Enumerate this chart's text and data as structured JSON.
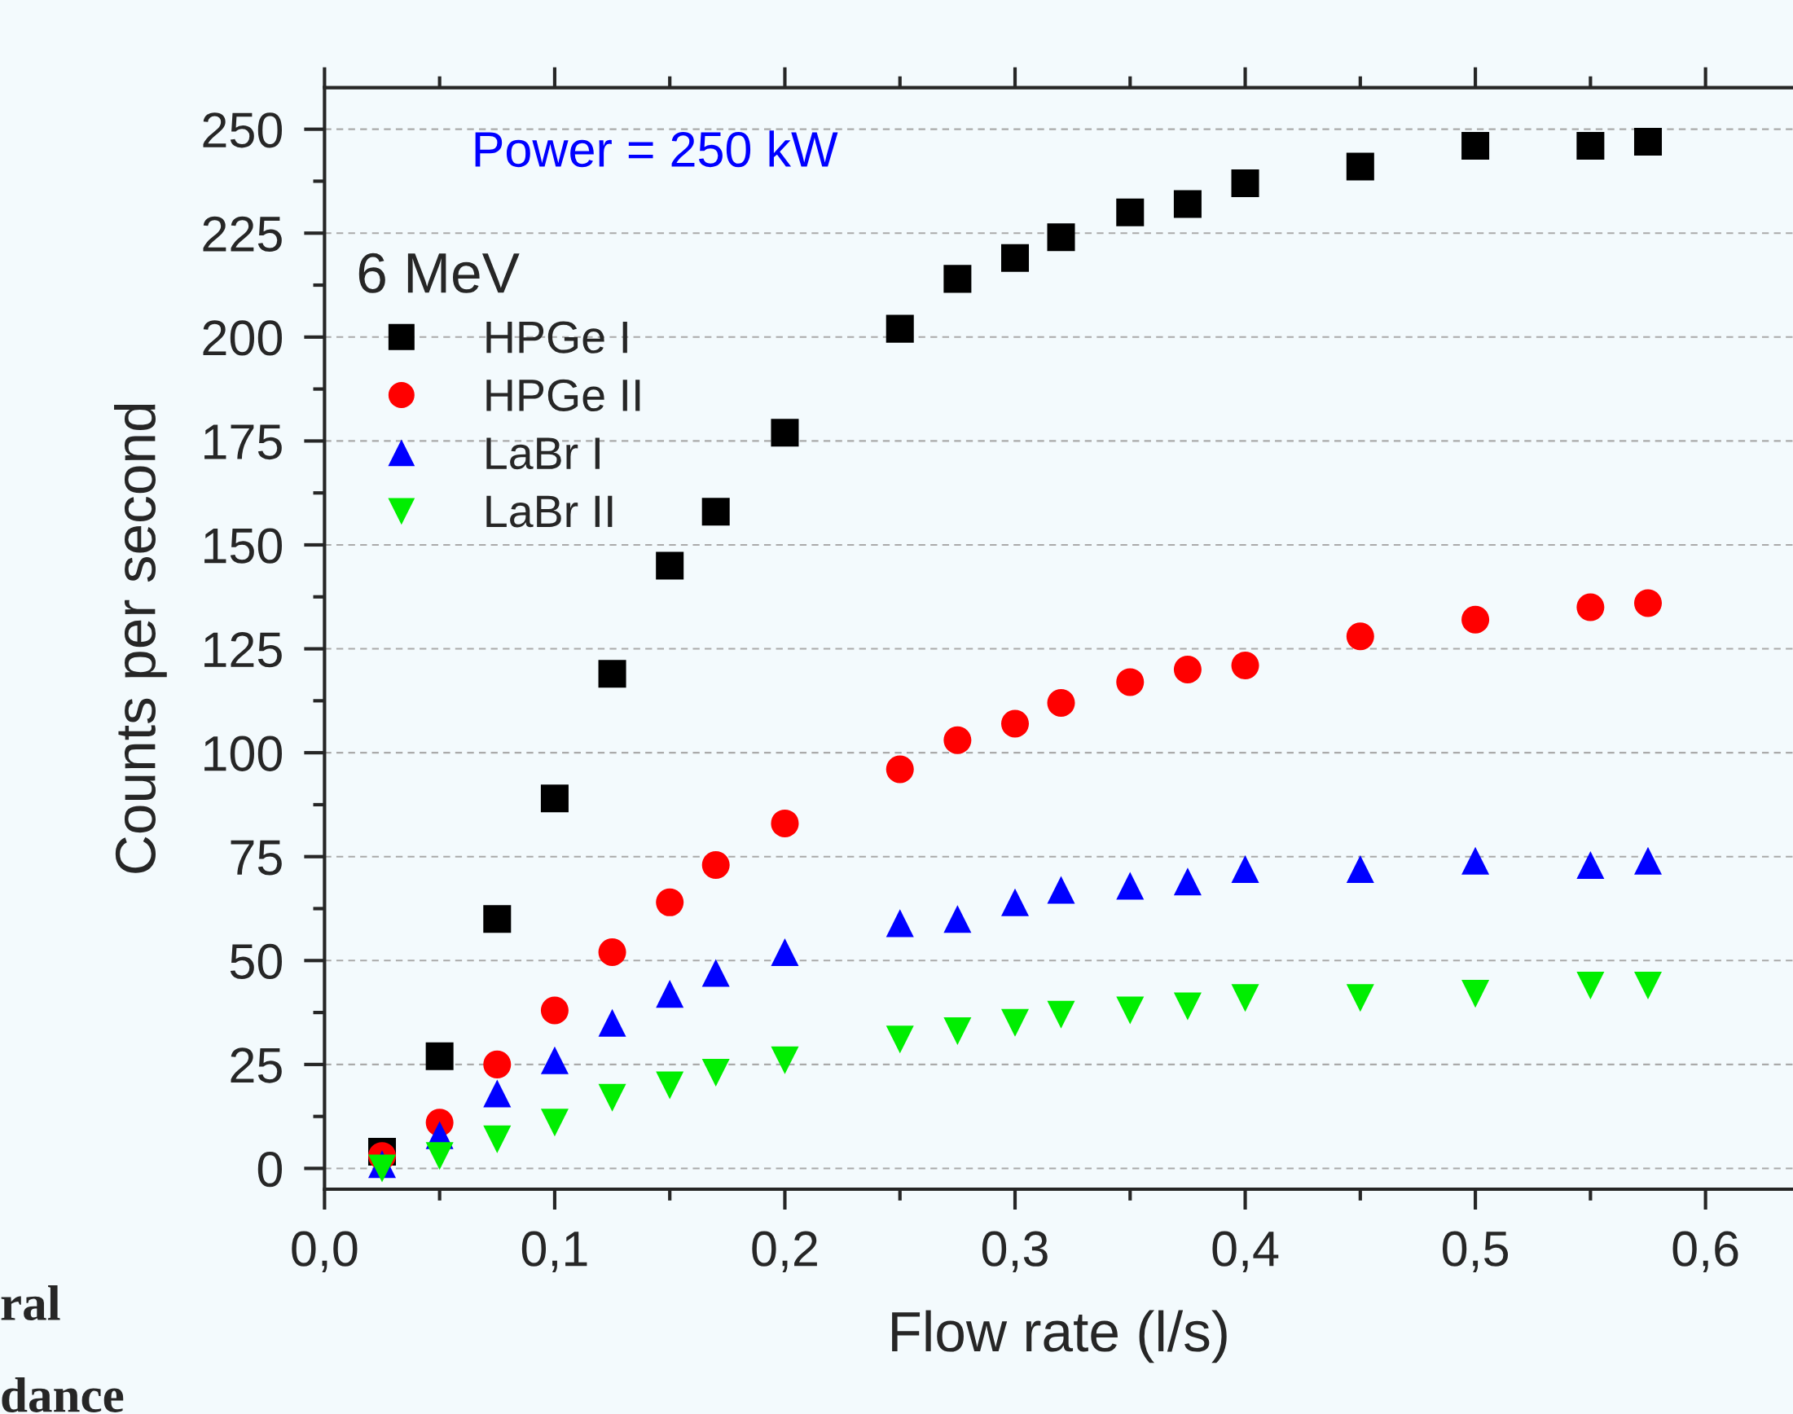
{
  "chart_data": {
    "type": "scatter",
    "xlabel": "Flow rate (l/s)",
    "ylabel": "Counts per second",
    "legend_title": "6 MeV",
    "annotations": [
      "Power = 250 kW",
      "ral",
      "dance"
    ],
    "x": [
      0.025,
      0.05,
      0.075,
      0.1,
      0.125,
      0.15,
      0.17,
      0.2,
      0.25,
      0.275,
      0.3,
      0.32,
      0.35,
      0.375,
      0.4,
      0.45,
      0.5,
      0.55,
      0.575
    ],
    "series": [
      {
        "name": "HPGe I",
        "color": "#000000",
        "marker": "square",
        "values": [
          4,
          27,
          60,
          89,
          119,
          145,
          158,
          177,
          202,
          214,
          219,
          224,
          230,
          232,
          237,
          241,
          246,
          246,
          247
        ]
      },
      {
        "name": "HPGe II",
        "color": "#ff0000",
        "marker": "circle",
        "values": [
          3,
          11,
          25,
          38,
          52,
          64,
          73,
          83,
          96,
          103,
          107,
          112,
          117,
          120,
          121,
          128,
          132,
          135,
          136
        ]
      },
      {
        "name": "LaBr I",
        "color": "#0000ff",
        "marker": "triangle",
        "values": [
          1,
          8,
          18,
          26,
          35,
          42,
          47,
          52,
          59,
          60,
          64,
          67,
          68,
          69,
          72,
          72,
          74,
          73,
          74
        ]
      },
      {
        "name": "LaBr II",
        "color": "#00ee00",
        "marker": "triangle_down",
        "values": [
          0,
          3,
          7,
          11,
          17,
          20,
          23,
          26,
          31,
          33,
          35,
          37,
          38,
          39,
          41,
          41,
          42,
          44,
          44
        ]
      }
    ],
    "xlim": [
      0,
      0.638
    ],
    "ylim": [
      -5,
      260
    ],
    "xticks": [
      {
        "value": 0.0,
        "label": "0,0"
      },
      {
        "value": 0.1,
        "label": "0,1"
      },
      {
        "value": 0.2,
        "label": "0,2"
      },
      {
        "value": 0.3,
        "label": "0,3"
      },
      {
        "value": 0.4,
        "label": "0,4"
      },
      {
        "value": 0.5,
        "label": "0,5"
      },
      {
        "value": 0.6,
        "label": "0,6"
      }
    ],
    "yticks": [
      0,
      25,
      50,
      75,
      100,
      125,
      150,
      175,
      200,
      225,
      250
    ],
    "grid": "y",
    "legend": "top left"
  }
}
